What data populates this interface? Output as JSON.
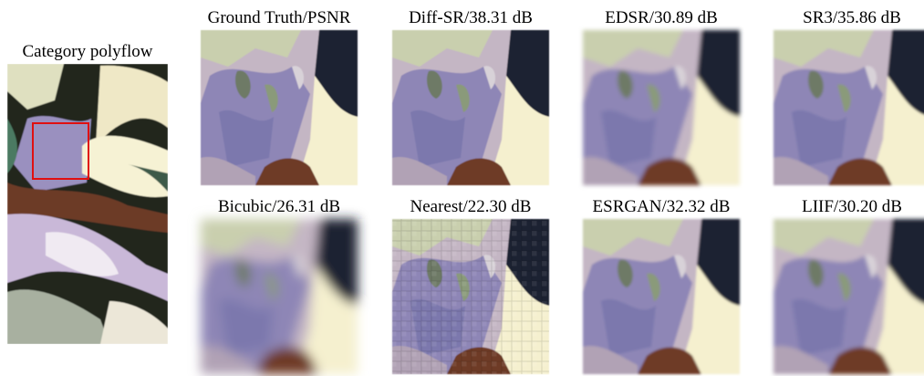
{
  "overview": {
    "caption": "Category polyflow"
  },
  "panels": [
    {
      "label": "Ground Truth/PSNR"
    },
    {
      "label": "Diff-SR/38.31 dB"
    },
    {
      "label": "EDSR/30.89 dB"
    },
    {
      "label": "SR3/35.86 dB"
    },
    {
      "label": "Bicubic/26.31 dB"
    },
    {
      "label": "Nearest/22.30 dB"
    },
    {
      "label": "ESRGAN/32.32 dB"
    },
    {
      "label": "LIIF/30.20 dB"
    }
  ]
}
